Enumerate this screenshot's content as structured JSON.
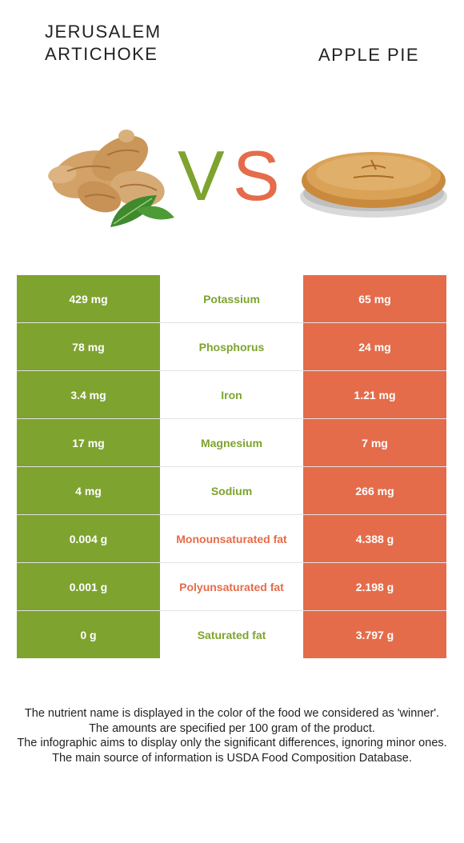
{
  "left_food": {
    "title": "JERUSALEM\nARTICHOKE",
    "color": "#7ea32f"
  },
  "right_food": {
    "title": "APPLE PIE",
    "color": "#e56c4a"
  },
  "vs": {
    "v": "V",
    "s": "S"
  },
  "images": {
    "left": "jerusalem-artichoke-image",
    "right": "apple-pie-image"
  },
  "rows": [
    {
      "left": "429 mg",
      "nutrient": "Potassium",
      "right": "65 mg",
      "winner": "left"
    },
    {
      "left": "78 mg",
      "nutrient": "Phosphorus",
      "right": "24 mg",
      "winner": "left"
    },
    {
      "left": "3.4 mg",
      "nutrient": "Iron",
      "right": "1.21 mg",
      "winner": "left"
    },
    {
      "left": "17 mg",
      "nutrient": "Magnesium",
      "right": "7 mg",
      "winner": "left"
    },
    {
      "left": "4 mg",
      "nutrient": "Sodium",
      "right": "266 mg",
      "winner": "left"
    },
    {
      "left": "0.004 g",
      "nutrient": "Monounsaturated fat",
      "right": "4.388 g",
      "winner": "right"
    },
    {
      "left": "0.001 g",
      "nutrient": "Polyunsaturated fat",
      "right": "2.198 g",
      "winner": "right"
    },
    {
      "left": "0 g",
      "nutrient": "Saturated fat",
      "right": "3.797 g",
      "winner": "left"
    }
  ],
  "notes": [
    "The nutrient name is displayed in the color of the food we considered as 'winner'.",
    "The amounts are specified per 100 gram of the product.",
    "The infographic aims to display only the significant differences, ignoring minor ones.",
    "The main source of information is USDA Food Composition Database."
  ]
}
